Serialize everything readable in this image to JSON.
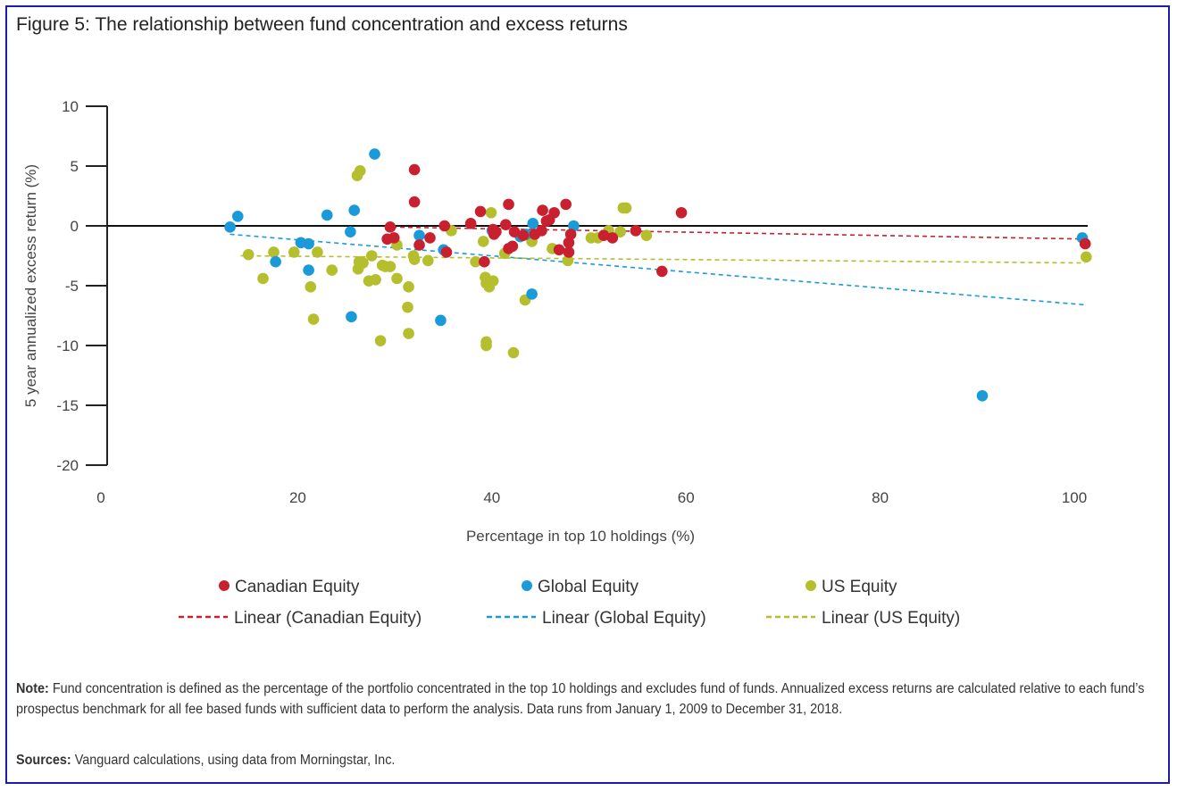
{
  "title": "Figure 5: The relationship between fund concentration and excess returns",
  "note_label": "Note:",
  "note_text": " Fund concentration is defined as the percentage of the portfolio concentrated in the top 10 holdings and excludes fund of funds. Annualized excess returns are calculated relative to each fund’s prospectus benchmark for all fee based funds with sufficient data to perform the analysis. Data runs from January 1, 2009 to December 31, 2018.",
  "sources_label": "Sources:",
  "sources_text": " Vanguard calculations, using data from Morningstar, Inc.",
  "chart_data": {
    "type": "scatter",
    "title": "Figure 5: The relationship between fund concentration and excess returns",
    "xlabel": "Percentage in top 10 holdings (%)",
    "ylabel": "5 year annualized excess return (%)",
    "xlim": [
      0,
      100
    ],
    "ylim": [
      -20,
      10
    ],
    "xticks": [
      0,
      20,
      40,
      60,
      80,
      100
    ],
    "yticks": [
      10,
      5,
      0,
      -5,
      -10,
      -15,
      -20
    ],
    "grid": false,
    "legend_position": "bottom",
    "series": [
      {
        "name": "Canadian Equity",
        "color": "#c8202f",
        "points": [
          [
            32.3,
            4.7
          ],
          [
            32.3,
            2.0
          ],
          [
            29.8,
            -0.1
          ],
          [
            29.5,
            -1.1
          ],
          [
            30.2,
            -1.0
          ],
          [
            32.8,
            -1.6
          ],
          [
            33.9,
            -1.0
          ],
          [
            35.6,
            -2.2
          ],
          [
            35.4,
            0
          ],
          [
            38.1,
            0.2
          ],
          [
            39.1,
            1.2
          ],
          [
            39.5,
            -3.0
          ],
          [
            40.4,
            -0.3
          ],
          [
            40.5,
            -0.7
          ],
          [
            40.7,
            -0.5
          ],
          [
            41.7,
            0.1
          ],
          [
            42.0,
            1.8
          ],
          [
            42.0,
            -1.9
          ],
          [
            42.4,
            -1.7
          ],
          [
            42.6,
            -0.5
          ],
          [
            43.5,
            -0.8
          ],
          [
            44.7,
            -0.7
          ],
          [
            45.5,
            1.3
          ],
          [
            45.9,
            0.4
          ],
          [
            46.2,
            0.5
          ],
          [
            46.7,
            1.1
          ],
          [
            47.2,
            -2.0
          ],
          [
            47.9,
            1.8
          ],
          [
            48.2,
            -1.4
          ],
          [
            48.4,
            -0.7
          ],
          [
            48.2,
            -2.2
          ],
          [
            51.8,
            -0.8
          ],
          [
            52.7,
            -1.0
          ],
          [
            55.1,
            -0.4
          ],
          [
            57.8,
            -3.8
          ],
          [
            59.8,
            1.1
          ],
          [
            101.4,
            -1.5
          ],
          [
            45.4,
            -0.4
          ]
        ]
      },
      {
        "name": "Global Equity",
        "color": "#1a9ad8",
        "points": [
          [
            13.3,
            -0.1
          ],
          [
            14.1,
            0.8
          ],
          [
            18.0,
            -3.0
          ],
          [
            20.6,
            -1.4
          ],
          [
            21.4,
            -1.5
          ],
          [
            21.4,
            -3.7
          ],
          [
            23.3,
            0.9
          ],
          [
            25.7,
            -0.5
          ],
          [
            25.8,
            -7.6
          ],
          [
            26.1,
            1.3
          ],
          [
            28.2,
            6.0
          ],
          [
            32.8,
            -0.8
          ],
          [
            35.3,
            -2.0
          ],
          [
            35.0,
            -7.9
          ],
          [
            40.3,
            -0.4
          ],
          [
            43.2,
            -0.9
          ],
          [
            43.8,
            -0.7
          ],
          [
            44.4,
            -5.7
          ],
          [
            44.5,
            0.2
          ],
          [
            48.7,
            0
          ],
          [
            90.8,
            -14.2
          ],
          [
            101.1,
            -1.0
          ]
        ]
      },
      {
        "name": "US Equity",
        "color": "#b5be2d",
        "points": [
          [
            15.2,
            -2.4
          ],
          [
            16.7,
            -4.4
          ],
          [
            17.8,
            -2.2
          ],
          [
            21.6,
            -5.1
          ],
          [
            21.9,
            -7.8
          ],
          [
            22.3,
            -2.2
          ],
          [
            23.8,
            -3.7
          ],
          [
            26.4,
            4.2
          ],
          [
            26.7,
            4.6
          ],
          [
            26.6,
            -3.0
          ],
          [
            26.5,
            -3.6
          ],
          [
            27.0,
            -3.1
          ],
          [
            27.6,
            -4.6
          ],
          [
            27.9,
            -2.5
          ],
          [
            28.3,
            -4.5
          ],
          [
            28.8,
            -9.6
          ],
          [
            29.0,
            -3.3
          ],
          [
            29.3,
            -3.4
          ],
          [
            29.8,
            -3.4
          ],
          [
            30.5,
            -1.6
          ],
          [
            30.5,
            -4.4
          ],
          [
            31.7,
            -5.1
          ],
          [
            31.6,
            -6.8
          ],
          [
            31.7,
            -9.0
          ],
          [
            32.2,
            -2.5
          ],
          [
            32.3,
            -2.8
          ],
          [
            33.7,
            -2.9
          ],
          [
            36.1,
            -0.4
          ],
          [
            38.6,
            -3.0
          ],
          [
            39.4,
            -1.3
          ],
          [
            39.6,
            -4.3
          ],
          [
            39.7,
            -4.8
          ],
          [
            39.7,
            -9.7
          ],
          [
            39.7,
            -10.0
          ],
          [
            40.0,
            -5.1
          ],
          [
            40.2,
            1.1
          ],
          [
            40.4,
            -4.6
          ],
          [
            41.6,
            -2.3
          ],
          [
            42.5,
            -10.6
          ],
          [
            43.7,
            -6.2
          ],
          [
            44.4,
            -1.3
          ],
          [
            46.5,
            -1.9
          ],
          [
            48.1,
            -2.9
          ],
          [
            50.5,
            -1.0
          ],
          [
            51.2,
            -1.0
          ],
          [
            52.3,
            -0.4
          ],
          [
            53.5,
            -0.5
          ],
          [
            53.8,
            1.5
          ],
          [
            54.1,
            1.5
          ],
          [
            56.2,
            -0.8
          ],
          [
            101.5,
            -2.6
          ],
          [
            19.9,
            -2.2
          ]
        ]
      }
    ],
    "trendlines": [
      {
        "name": "Linear (Canadian Equity)",
        "color": "#c8202f",
        "from": [
          30.0,
          -0.1
        ],
        "to": [
          101.4,
          -1.1
        ]
      },
      {
        "name": "Linear (Global Equity)",
        "color": "#1a9ad8",
        "from": [
          13.3,
          -0.7
        ],
        "to": [
          101.4,
          -6.6
        ]
      },
      {
        "name": "Linear (US Equity)",
        "color": "#b5be2d",
        "from": [
          14.4,
          -2.5
        ],
        "to": [
          101.4,
          -3.1
        ]
      }
    ]
  }
}
